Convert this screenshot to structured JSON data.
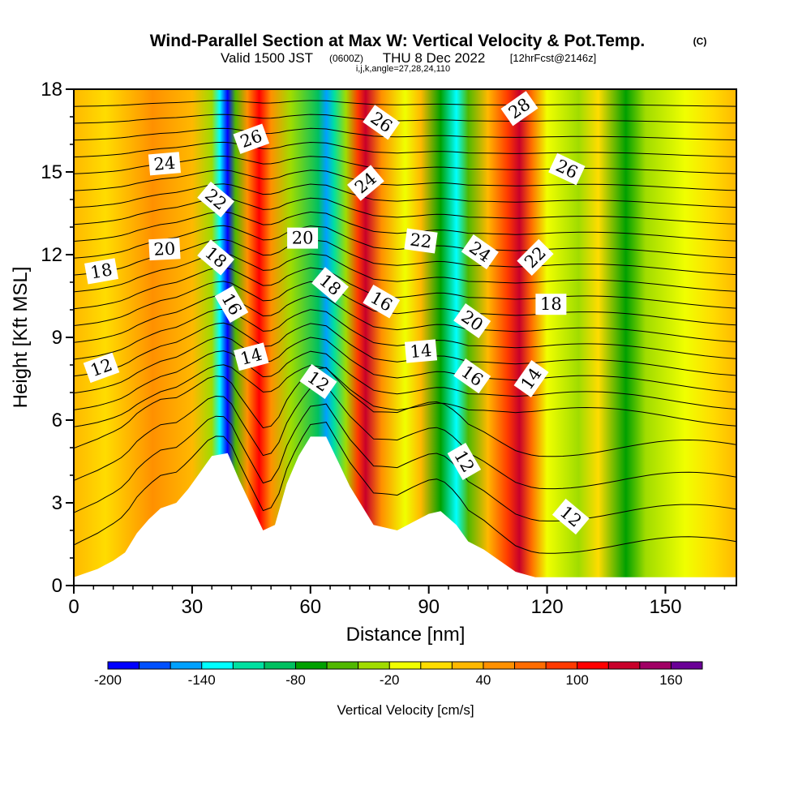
{
  "header": {
    "title": "Wind-Parallel Section at Max W: Vertical Velocity & Pot.Temp.",
    "copyright": "(C)",
    "valid_prefix": "Valid 1500 JST",
    "valid_utc": "(0600Z)",
    "valid_date": "THU 8 Dec 2022",
    "forecast": "[12hrFcst@2146z]",
    "params": "i,j,k,angle=27,28,24,110"
  },
  "chart_data": {
    "type": "heatmap",
    "xlabel": "Distance [nm]",
    "ylabel": "Height [Kft MSL]",
    "xlim": [
      0,
      168
    ],
    "ylim": [
      0,
      18
    ],
    "x_ticks": [
      "0",
      "30",
      "60",
      "90",
      "120",
      "150"
    ],
    "x_tick_values": [
      0,
      30,
      60,
      90,
      120,
      150
    ],
    "y_ticks": [
      "0",
      "3",
      "6",
      "9",
      "12",
      "15",
      "18"
    ],
    "y_tick_values": [
      0,
      3,
      6,
      9,
      12,
      15,
      18
    ],
    "colorbar": {
      "label": "Vertical Velocity [cm/s]",
      "min": -200,
      "max": 180,
      "step": 20,
      "tick_labels": [
        "-200",
        "-140",
        "-80",
        "-20",
        "40",
        "100",
        "160"
      ],
      "tick_values": [
        -200,
        -140,
        -80,
        -20,
        40,
        100,
        160
      ],
      "colors": [
        "#0000ff",
        "#0050ff",
        "#00a0ff",
        "#00ffff",
        "#00e0a0",
        "#00c060",
        "#00a000",
        "#50b800",
        "#a0dc00",
        "#f0ff00",
        "#ffdc00",
        "#ffb800",
        "#ff9000",
        "#ff6c00",
        "#ff3a00",
        "#ff0000",
        "#c8002a",
        "#a00064",
        "#6a0096"
      ]
    },
    "velocity_bands": [
      {
        "x": 0,
        "value": 30
      },
      {
        "x": 8,
        "value": 10
      },
      {
        "x": 20,
        "value": 40
      },
      {
        "x": 30,
        "value": 20
      },
      {
        "x": 35,
        "value": -40
      },
      {
        "x": 37,
        "value": -140
      },
      {
        "x": 39,
        "value": -200
      },
      {
        "x": 41,
        "value": -60
      },
      {
        "x": 44,
        "value": 40
      },
      {
        "x": 47,
        "value": 100
      },
      {
        "x": 50,
        "value": 40
      },
      {
        "x": 55,
        "value": -40
      },
      {
        "x": 62,
        "value": -100
      },
      {
        "x": 64,
        "value": -160
      },
      {
        "x": 66,
        "value": -120
      },
      {
        "x": 69,
        "value": -40
      },
      {
        "x": 72,
        "value": 80
      },
      {
        "x": 74,
        "value": 120
      },
      {
        "x": 78,
        "value": 40
      },
      {
        "x": 84,
        "value": -20
      },
      {
        "x": 88,
        "value": 20
      },
      {
        "x": 93,
        "value": -80
      },
      {
        "x": 97,
        "value": -140
      },
      {
        "x": 100,
        "value": -60
      },
      {
        "x": 105,
        "value": 20
      },
      {
        "x": 110,
        "value": 80
      },
      {
        "x": 113,
        "value": 120
      },
      {
        "x": 116,
        "value": 60
      },
      {
        "x": 120,
        "value": -20
      },
      {
        "x": 128,
        "value": -40
      },
      {
        "x": 133,
        "value": 0
      },
      {
        "x": 140,
        "value": -80
      },
      {
        "x": 145,
        "value": -40
      },
      {
        "x": 155,
        "value": -20
      },
      {
        "x": 162,
        "value": 0
      },
      {
        "x": 168,
        "value": 20
      }
    ],
    "terrain": [
      {
        "x": 0,
        "y": 0.3
      },
      {
        "x": 6,
        "y": 0.6
      },
      {
        "x": 10,
        "y": 0.9
      },
      {
        "x": 13,
        "y": 1.2
      },
      {
        "x": 16,
        "y": 1.9
      },
      {
        "x": 19,
        "y": 2.4
      },
      {
        "x": 22,
        "y": 2.8
      },
      {
        "x": 26,
        "y": 3.0
      },
      {
        "x": 29,
        "y": 3.5
      },
      {
        "x": 32,
        "y": 4.1
      },
      {
        "x": 35,
        "y": 4.7
      },
      {
        "x": 39,
        "y": 4.8
      },
      {
        "x": 42,
        "y": 3.8
      },
      {
        "x": 45,
        "y": 2.9
      },
      {
        "x": 48,
        "y": 2.0
      },
      {
        "x": 51,
        "y": 2.2
      },
      {
        "x": 54,
        "y": 3.7
      },
      {
        "x": 57,
        "y": 4.7
      },
      {
        "x": 60,
        "y": 5.4
      },
      {
        "x": 64,
        "y": 5.4
      },
      {
        "x": 67,
        "y": 4.5
      },
      {
        "x": 70,
        "y": 3.6
      },
      {
        "x": 73,
        "y": 2.9
      },
      {
        "x": 76,
        "y": 2.2
      },
      {
        "x": 82,
        "y": 2.0
      },
      {
        "x": 86,
        "y": 2.3
      },
      {
        "x": 90,
        "y": 2.6
      },
      {
        "x": 93,
        "y": 2.7
      },
      {
        "x": 97,
        "y": 2.2
      },
      {
        "x": 100,
        "y": 1.6
      },
      {
        "x": 104,
        "y": 1.3
      },
      {
        "x": 108,
        "y": 0.9
      },
      {
        "x": 112,
        "y": 0.5
      },
      {
        "x": 117,
        "y": 0.3
      },
      {
        "x": 168,
        "y": 0.3
      }
    ],
    "theta_contours": [
      12,
      14,
      16,
      18,
      20,
      22,
      24,
      26,
      28
    ],
    "contour_labels": [
      {
        "text": "24",
        "x": 23,
        "y": 15.3,
        "angle": -5
      },
      {
        "text": "26",
        "x": 45,
        "y": 16.2,
        "angle": -20
      },
      {
        "text": "22",
        "x": 36,
        "y": 14.0,
        "angle": 40
      },
      {
        "text": "20",
        "x": 23,
        "y": 12.2,
        "angle": -3
      },
      {
        "text": "18",
        "x": 7,
        "y": 11.4,
        "angle": -10
      },
      {
        "text": "18",
        "x": 36,
        "y": 11.9,
        "angle": 40
      },
      {
        "text": "16",
        "x": 40,
        "y": 10.2,
        "angle": 60
      },
      {
        "text": "14",
        "x": 45,
        "y": 8.3,
        "angle": -15
      },
      {
        "text": "12",
        "x": 7,
        "y": 7.9,
        "angle": -20
      },
      {
        "text": "20",
        "x": 58,
        "y": 12.6,
        "angle": 0
      },
      {
        "text": "18",
        "x": 65,
        "y": 10.9,
        "angle": 40
      },
      {
        "text": "12",
        "x": 62,
        "y": 7.4,
        "angle": 35
      },
      {
        "text": "24",
        "x": 74,
        "y": 14.6,
        "angle": -40
      },
      {
        "text": "26",
        "x": 78,
        "y": 16.8,
        "angle": 35
      },
      {
        "text": "16",
        "x": 78,
        "y": 10.3,
        "angle": 30
      },
      {
        "text": "22",
        "x": 88,
        "y": 12.5,
        "angle": 8
      },
      {
        "text": "14",
        "x": 88,
        "y": 8.5,
        "angle": -5
      },
      {
        "text": "24",
        "x": 103,
        "y": 12.1,
        "angle": 35
      },
      {
        "text": "20",
        "x": 101,
        "y": 9.6,
        "angle": 35
      },
      {
        "text": "16",
        "x": 101,
        "y": 7.6,
        "angle": 35
      },
      {
        "text": "12",
        "x": 99,
        "y": 4.5,
        "angle": 60
      },
      {
        "text": "28",
        "x": 113,
        "y": 17.3,
        "angle": -35
      },
      {
        "text": "22",
        "x": 117,
        "y": 11.9,
        "angle": -45
      },
      {
        "text": "26",
        "x": 125,
        "y": 15.1,
        "angle": 25
      },
      {
        "text": "18",
        "x": 121,
        "y": 10.2,
        "angle": 0
      },
      {
        "text": "14",
        "x": 116,
        "y": 7.5,
        "angle": -55
      },
      {
        "text": "12",
        "x": 126,
        "y": 2.5,
        "angle": 40
      }
    ]
  }
}
